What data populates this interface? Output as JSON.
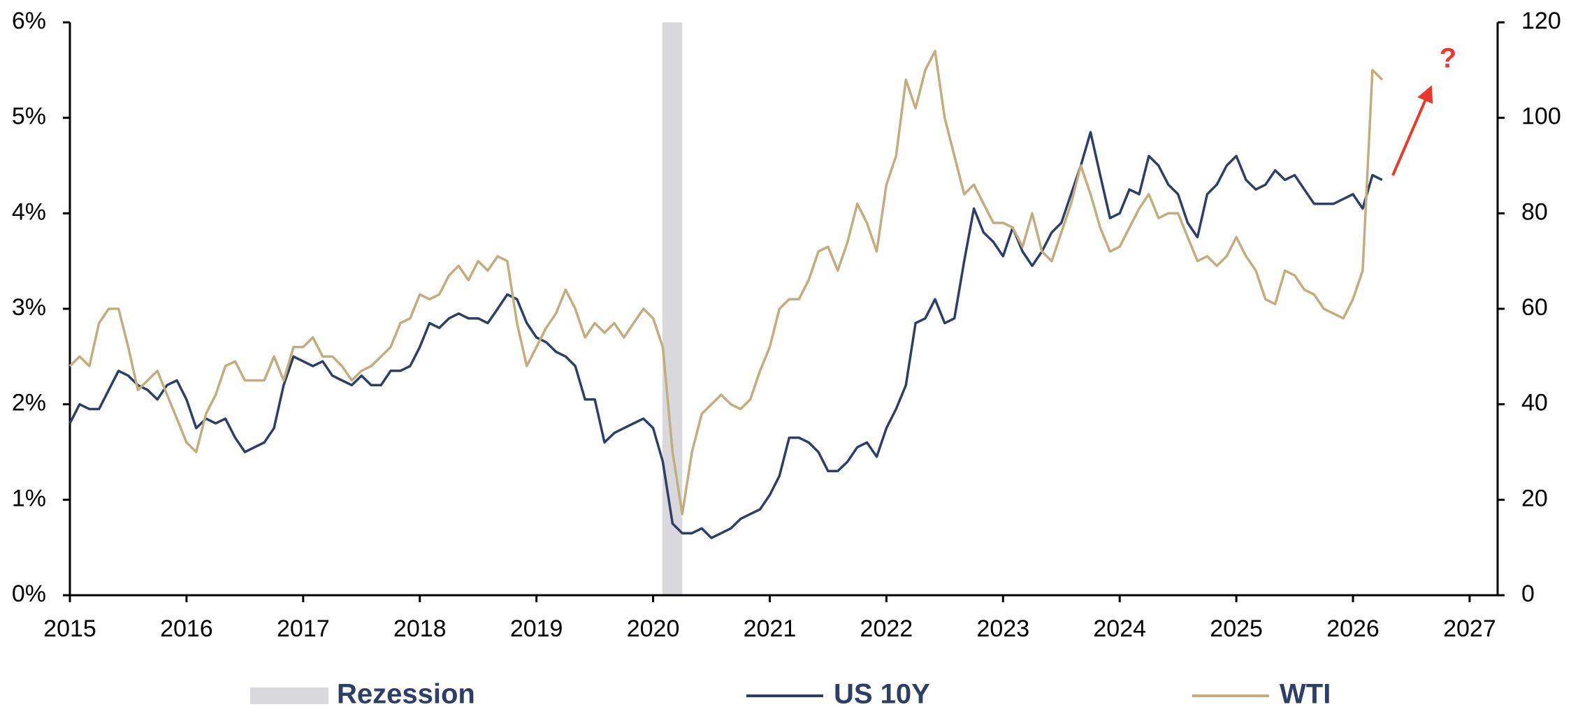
{
  "chart_data": {
    "type": "line",
    "x": [
      2015,
      2015.083,
      2015.167,
      2015.25,
      2015.333,
      2015.417,
      2015.5,
      2015.583,
      2015.667,
      2015.75,
      2015.833,
      2015.917,
      2016,
      2016.083,
      2016.167,
      2016.25,
      2016.333,
      2016.417,
      2016.5,
      2016.583,
      2016.667,
      2016.75,
      2016.833,
      2016.917,
      2017,
      2017.083,
      2017.167,
      2017.25,
      2017.333,
      2017.417,
      2017.5,
      2017.583,
      2017.667,
      2017.75,
      2017.833,
      2017.917,
      2018,
      2018.083,
      2018.167,
      2018.25,
      2018.333,
      2018.417,
      2018.5,
      2018.583,
      2018.667,
      2018.75,
      2018.833,
      2018.917,
      2019,
      2019.083,
      2019.167,
      2019.25,
      2019.333,
      2019.417,
      2019.5,
      2019.583,
      2019.667,
      2019.75,
      2019.833,
      2019.917,
      2020,
      2020.083,
      2020.167,
      2020.25,
      2020.333,
      2020.417,
      2020.5,
      2020.583,
      2020.667,
      2020.75,
      2020.833,
      2020.917,
      2021,
      2021.083,
      2021.167,
      2021.25,
      2021.333,
      2021.417,
      2021.5,
      2021.583,
      2021.667,
      2021.75,
      2021.833,
      2021.917,
      2022,
      2022.083,
      2022.167,
      2022.25,
      2022.333,
      2022.417,
      2022.5,
      2022.583,
      2022.667,
      2022.75,
      2022.833,
      2022.917,
      2023,
      2023.083,
      2023.167,
      2023.25,
      2023.333,
      2023.417,
      2023.5,
      2023.583,
      2023.667,
      2023.75,
      2023.833,
      2023.917,
      2024,
      2024.083,
      2024.167,
      2024.25,
      2024.333,
      2024.417,
      2024.5,
      2024.583,
      2024.667,
      2024.75,
      2024.833,
      2024.917,
      2025,
      2025.083,
      2025.167,
      2025.25,
      2025.333,
      2025.417,
      2025.5,
      2025.583,
      2025.667,
      2025.75,
      2025.833,
      2025.917,
      2026,
      2026.083,
      2026.167,
      2026.25
    ],
    "series": [
      {
        "name": "US 10Y",
        "color": "#2e3f66",
        "axis": "y",
        "values": [
          1.8,
          2.0,
          1.95,
          1.95,
          2.15,
          2.35,
          2.3,
          2.2,
          2.15,
          2.05,
          2.2,
          2.25,
          2.05,
          1.75,
          1.85,
          1.8,
          1.85,
          1.65,
          1.5,
          1.55,
          1.6,
          1.75,
          2.2,
          2.5,
          2.45,
          2.4,
          2.45,
          2.3,
          2.25,
          2.2,
          2.3,
          2.2,
          2.2,
          2.35,
          2.35,
          2.4,
          2.6,
          2.85,
          2.8,
          2.9,
          2.95,
          2.9,
          2.9,
          2.85,
          3.0,
          3.15,
          3.1,
          2.85,
          2.7,
          2.65,
          2.55,
          2.5,
          2.4,
          2.05,
          2.05,
          1.6,
          1.7,
          1.75,
          1.8,
          1.85,
          1.75,
          1.4,
          0.75,
          0.65,
          0.65,
          0.7,
          0.6,
          0.65,
          0.7,
          0.8,
          0.85,
          0.9,
          1.05,
          1.25,
          1.65,
          1.65,
          1.6,
          1.5,
          1.3,
          1.3,
          1.4,
          1.55,
          1.6,
          1.45,
          1.75,
          1.95,
          2.2,
          2.85,
          2.9,
          3.1,
          2.85,
          2.9,
          3.5,
          4.05,
          3.8,
          3.7,
          3.55,
          3.85,
          3.6,
          3.45,
          3.6,
          3.8,
          3.9,
          4.2,
          4.5,
          4.85,
          4.4,
          3.95,
          4.0,
          4.25,
          4.2,
          4.6,
          4.5,
          4.3,
          4.2,
          3.9,
          3.75,
          4.2,
          4.3,
          4.5,
          4.6,
          4.35,
          4.25,
          4.3,
          4.45,
          4.35,
          4.4,
          4.25,
          4.1,
          4.1,
          4.1,
          4.15,
          4.2,
          4.05,
          4.4,
          4.35
        ]
      },
      {
        "name": "WTI",
        "color": "#c2ad7e",
        "axis": "y2",
        "values": [
          48,
          50,
          48,
          57,
          60,
          60,
          52,
          43,
          45,
          47,
          42,
          37,
          32,
          30,
          38,
          42,
          48,
          49,
          45,
          45,
          45,
          50,
          45,
          52,
          52,
          54,
          50,
          50,
          48,
          45,
          47,
          48,
          50,
          52,
          57,
          58,
          63,
          62,
          63,
          67,
          69,
          66,
          70,
          68,
          71,
          70,
          57,
          48,
          52,
          56,
          59,
          64,
          60,
          54,
          57,
          55,
          57,
          54,
          57,
          60,
          58,
          52,
          30,
          17,
          30,
          38,
          40,
          42,
          40,
          39,
          41,
          47,
          52,
          60,
          62,
          62,
          66,
          72,
          73,
          68,
          74,
          82,
          78,
          72,
          86,
          92,
          108,
          102,
          110,
          114,
          100,
          92,
          84,
          86,
          82,
          78,
          78,
          77,
          73,
          80,
          72,
          70,
          76,
          82,
          90,
          84,
          77,
          72,
          73,
          77,
          81,
          84,
          79,
          80,
          80,
          75,
          70,
          71,
          69,
          71,
          75,
          71,
          68,
          62,
          61,
          68,
          67,
          64,
          63,
          60,
          59,
          58,
          62,
          68,
          110,
          108
        ]
      }
    ],
    "recession": {
      "name": "Rezession",
      "color": "#d9d8dd",
      "xrange": [
        2020.08,
        2020.25
      ]
    },
    "annotation": "?",
    "xlim": [
      2015,
      2027.24
    ],
    "xticks": [
      2015,
      2016,
      2017,
      2018,
      2019,
      2020,
      2021,
      2022,
      2023,
      2024,
      2025,
      2026,
      2027
    ],
    "ylim": [
      0,
      6
    ],
    "yticks": [
      {
        "value": 0,
        "label": "0%"
      },
      {
        "value": 1,
        "label": "1%"
      },
      {
        "value": 2,
        "label": "2%"
      },
      {
        "value": 3,
        "label": "3%"
      },
      {
        "value": 4,
        "label": "4%"
      },
      {
        "value": 5,
        "label": "5%"
      },
      {
        "value": 6,
        "label": "6%"
      }
    ],
    "y2lim": [
      0,
      120
    ],
    "y2ticks": [
      0,
      20,
      40,
      60,
      80,
      100,
      120
    ],
    "grid": false
  }
}
